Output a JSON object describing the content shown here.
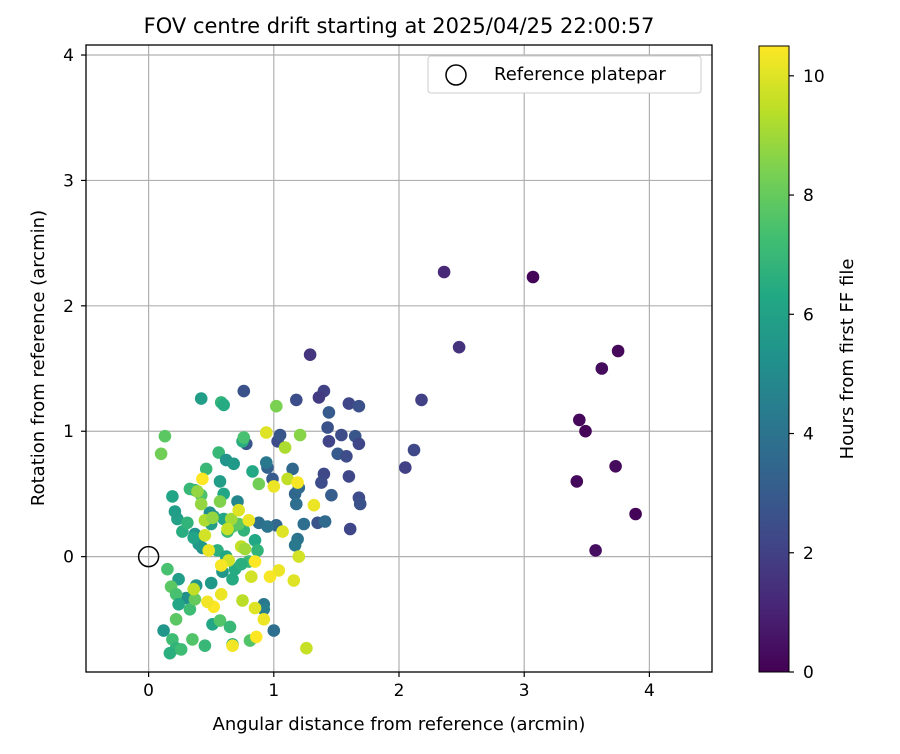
{
  "chart_data": {
    "type": "scatter",
    "title": "FOV centre drift starting at 2025/04/25 22:00:57",
    "xlabel": "Angular distance from reference (arcmin)",
    "ylabel": "Rotation from reference (arcmin)",
    "xlim": [
      -0.5,
      4.5
    ],
    "ylim": [
      -0.92,
      4.08
    ],
    "xticks": [
      0,
      1,
      2,
      3,
      4
    ],
    "yticks": [
      0,
      1,
      2,
      3,
      4
    ],
    "grid": true,
    "legend": {
      "position": "top-right",
      "entries": [
        "Reference platepar"
      ]
    },
    "colorbar": {
      "label": "Hours from first FF file",
      "range": [
        0,
        10.5
      ],
      "ticks": [
        0,
        2,
        4,
        6,
        8,
        10
      ],
      "colormap": "viridis"
    },
    "reference_point": {
      "x": 0,
      "y": 0,
      "label": "Reference platepar"
    },
    "points": [
      [
        3.07,
        2.23,
        0.1
      ],
      [
        3.75,
        1.64,
        0.2
      ],
      [
        3.62,
        1.5,
        0.3
      ],
      [
        3.44,
        1.09,
        0.2
      ],
      [
        3.49,
        1.0,
        0.15
      ],
      [
        3.42,
        0.6,
        0.25
      ],
      [
        3.73,
        0.72,
        0.3
      ],
      [
        3.89,
        0.34,
        0.1
      ],
      [
        3.57,
        0.05,
        0.4
      ],
      [
        2.36,
        2.27,
        1.2
      ],
      [
        2.48,
        1.67,
        1.5
      ],
      [
        2.18,
        1.25,
        2.0
      ],
      [
        2.12,
        0.85,
        2.3
      ],
      [
        2.05,
        0.71,
        2.0
      ],
      [
        1.29,
        1.61,
        1.6
      ],
      [
        1.4,
        1.32,
        2.0
      ],
      [
        1.36,
        1.27,
        1.8
      ],
      [
        1.6,
        1.22,
        2.2
      ],
      [
        1.68,
        1.2,
        2.6
      ],
      [
        1.18,
        1.25,
        2.5
      ],
      [
        1.44,
        1.15,
        3.0
      ],
      [
        1.43,
        1.03,
        2.6
      ],
      [
        1.54,
        0.97,
        2.4
      ],
      [
        1.65,
        0.96,
        2.8
      ],
      [
        1.68,
        0.9,
        2.2
      ],
      [
        1.44,
        0.92,
        2.1
      ],
      [
        1.51,
        0.82,
        3.0
      ],
      [
        1.58,
        0.8,
        2.4
      ],
      [
        1.4,
        0.66,
        2.3
      ],
      [
        1.6,
        0.64,
        2.2
      ],
      [
        1.38,
        0.59,
        2.4
      ],
      [
        1.46,
        0.49,
        3.1
      ],
      [
        1.68,
        0.47,
        2.4
      ],
      [
        1.69,
        0.42,
        2.6
      ],
      [
        1.61,
        0.22,
        2.2
      ],
      [
        1.35,
        0.27,
        2.7
      ],
      [
        1.41,
        0.28,
        3.6
      ],
      [
        1.24,
        0.26,
        3.8
      ],
      [
        1.15,
        0.7,
        3.5
      ],
      [
        1.17,
        0.5,
        3.5
      ],
      [
        1.2,
        0.55,
        3.6
      ],
      [
        1.18,
        0.42,
        3.8
      ],
      [
        1.19,
        0.14,
        4.0
      ],
      [
        1.17,
        0.09,
        4.2
      ],
      [
        0.76,
        1.32,
        2.6
      ],
      [
        0.78,
        0.9,
        2.8
      ],
      [
        1.03,
        0.92,
        2.4
      ],
      [
        1.05,
        0.97,
        2.8
      ],
      [
        0.99,
        0.62,
        3.0
      ],
      [
        0.95,
        0.71,
        3.2
      ],
      [
        0.94,
        0.75,
        4.2
      ],
      [
        1.02,
        0.25,
        3.5
      ],
      [
        0.88,
        0.27,
        3.8
      ],
      [
        0.95,
        0.24,
        4.0
      ],
      [
        1.0,
        -0.59,
        3.8
      ],
      [
        0.92,
        -0.38,
        4.2
      ],
      [
        0.92,
        -0.42,
        4.5
      ],
      [
        0.71,
        0.44,
        4.8
      ],
      [
        0.42,
        1.26,
        5.8
      ],
      [
        0.58,
        1.23,
        6.8
      ],
      [
        0.6,
        1.21,
        6.4
      ],
      [
        0.56,
        0.83,
        7.0
      ],
      [
        0.75,
        0.92,
        6.5
      ],
      [
        0.76,
        0.95,
        7.4
      ],
      [
        1.02,
        1.2,
        8.4
      ],
      [
        1.21,
        0.97,
        8.6
      ],
      [
        0.62,
        0.77,
        5.4
      ],
      [
        0.68,
        0.74,
        5.6
      ],
      [
        0.57,
        0.6,
        5.8
      ],
      [
        0.83,
        0.68,
        6.3
      ],
      [
        0.6,
        0.5,
        6.2
      ],
      [
        0.46,
        0.7,
        7.0
      ],
      [
        0.19,
        0.48,
        6.1
      ],
      [
        0.23,
        0.3,
        6.0
      ],
      [
        0.27,
        0.2,
        6.5
      ],
      [
        0.37,
        0.53,
        6.8
      ],
      [
        0.33,
        0.54,
        7.0
      ],
      [
        0.42,
        0.49,
        7.5
      ],
      [
        0.31,
        0.27,
        6.8
      ],
      [
        0.21,
        0.36,
        5.8
      ],
      [
        0.43,
        0.07,
        5.2
      ],
      [
        0.4,
        0.1,
        5.6
      ],
      [
        0.37,
        0.18,
        5.4
      ],
      [
        0.36,
        0.15,
        6.1
      ],
      [
        0.5,
        0.26,
        5.8
      ],
      [
        0.52,
        0.32,
        6.0
      ],
      [
        0.6,
        0.3,
        6.2
      ],
      [
        0.49,
        0.35,
        5.2
      ],
      [
        0.55,
        0.05,
        6.6
      ],
      [
        0.63,
        0.2,
        7.0
      ],
      [
        0.62,
        0.0,
        6.2
      ],
      [
        0.69,
        -0.1,
        6.4
      ],
      [
        0.76,
        0.21,
        6.8
      ],
      [
        0.67,
        0.24,
        7.5
      ],
      [
        0.72,
        0.26,
        7.8
      ],
      [
        0.85,
        0.13,
        6.3
      ],
      [
        0.87,
        0.05,
        6.8
      ],
      [
        0.8,
        -0.04,
        7.0
      ],
      [
        0.74,
        -0.06,
        6.6
      ],
      [
        0.67,
        -0.18,
        6.4
      ],
      [
        0.59,
        -0.12,
        5.5
      ],
      [
        0.5,
        -0.21,
        5.6
      ],
      [
        0.38,
        -0.23,
        5.4
      ],
      [
        0.3,
        -0.33,
        5.2
      ],
      [
        0.24,
        -0.18,
        5.8
      ],
      [
        0.15,
        -0.1,
        7.4
      ],
      [
        0.18,
        -0.24,
        7.8
      ],
      [
        0.22,
        -0.3,
        7.4
      ],
      [
        0.24,
        -0.38,
        6.2
      ],
      [
        0.22,
        -0.5,
        7.8
      ],
      [
        0.33,
        -0.42,
        7.2
      ],
      [
        0.37,
        -0.34,
        8.0
      ],
      [
        0.12,
        -0.59,
        5.5
      ],
      [
        0.19,
        -0.66,
        7.2
      ],
      [
        0.22,
        -0.73,
        6.8
      ],
      [
        0.17,
        -0.77,
        6.6
      ],
      [
        0.26,
        -0.74,
        7.2
      ],
      [
        0.35,
        -0.66,
        7.6
      ],
      [
        0.45,
        -0.71,
        7.0
      ],
      [
        0.51,
        -0.54,
        6.2
      ],
      [
        0.57,
        -0.51,
        7.6
      ],
      [
        0.65,
        -0.56,
        7.0
      ],
      [
        0.67,
        -0.7,
        6.4
      ],
      [
        0.81,
        -0.67,
        7.6
      ],
      [
        0.13,
        0.96,
        7.8
      ],
      [
        0.1,
        0.82,
        8.2
      ],
      [
        0.42,
        0.42,
        8.8
      ],
      [
        0.57,
        0.44,
        8.5
      ],
      [
        0.45,
        0.29,
        9.2
      ],
      [
        0.51,
        0.31,
        8.8
      ],
      [
        0.66,
        0.3,
        9.0
      ],
      [
        0.72,
        0.37,
        10.0
      ],
      [
        0.8,
        0.29,
        10.2
      ],
      [
        0.74,
        0.08,
        9.5
      ],
      [
        0.77,
        0.06,
        9.0
      ],
      [
        0.64,
        -0.03,
        9.8
      ],
      [
        0.58,
        -0.07,
        10.4
      ],
      [
        0.48,
        0.05,
        10.2
      ],
      [
        0.45,
        0.17,
        9.8
      ],
      [
        0.63,
        0.22,
        9.6
      ],
      [
        0.88,
        0.58,
        8.2
      ],
      [
        0.94,
        0.99,
        10.0
      ],
      [
        1.09,
        0.87,
        9.2
      ],
      [
        1.11,
        0.62,
        9.5
      ],
      [
        1.19,
        0.59,
        10.4
      ],
      [
        1.0,
        0.56,
        10.2
      ],
      [
        1.07,
        0.2,
        10.0
      ],
      [
        1.2,
        0.0,
        9.8
      ],
      [
        1.16,
        -0.19,
        10.0
      ],
      [
        1.04,
        -0.11,
        10.2
      ],
      [
        0.97,
        -0.16,
        10.4
      ],
      [
        0.85,
        -0.04,
        10.5
      ],
      [
        0.82,
        -0.16,
        9.8
      ],
      [
        0.75,
        -0.35,
        9.4
      ],
      [
        0.85,
        -0.41,
        10.0
      ],
      [
        0.92,
        -0.5,
        10.2
      ],
      [
        0.86,
        -0.64,
        10.5
      ],
      [
        0.67,
        -0.71,
        10.3
      ],
      [
        0.58,
        -0.3,
        10.2
      ],
      [
        0.52,
        -0.4,
        10.5
      ],
      [
        0.47,
        -0.36,
        10.3
      ],
      [
        0.36,
        -0.26,
        9.5
      ],
      [
        1.32,
        0.41,
        10.2
      ],
      [
        1.26,
        -0.73,
        9.6
      ],
      [
        0.43,
        0.62,
        10.5
      ],
      [
        0.39,
        0.52,
        8.8
      ]
    ]
  }
}
